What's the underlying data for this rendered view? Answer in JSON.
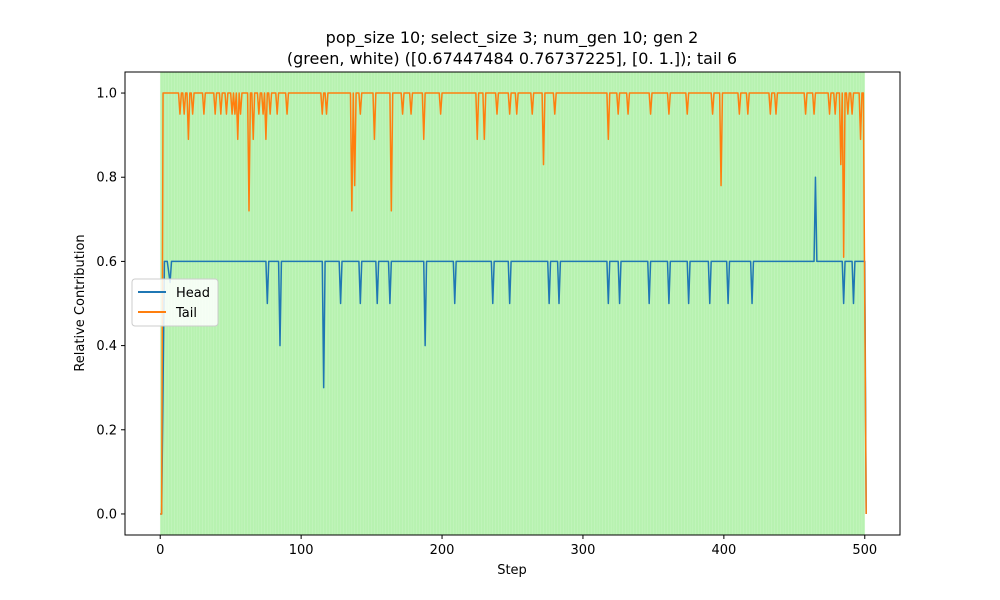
{
  "chart_data": {
    "type": "line",
    "title_line1": "pop_size 10; select_size 3; num_gen 10; gen 2",
    "title_line2": "(green, white) ([0.67447484 0.76737225], [0. 1.]); tail 6",
    "xlabel": "Step",
    "ylabel": "Relative Contribution",
    "xlim": [
      -25,
      525
    ],
    "ylim": [
      -0.05,
      1.05
    ],
    "xticks": [
      0,
      100,
      200,
      300,
      400,
      500
    ],
    "yticks": [
      0.0,
      0.2,
      0.4,
      0.6,
      0.8,
      1.0
    ],
    "xtick_labels": [
      "0",
      "100",
      "200",
      "300",
      "400",
      "500"
    ],
    "ytick_labels": [
      "0.0",
      "0.2",
      "0.4",
      "0.6",
      "0.8",
      "1.0"
    ],
    "background_band": {
      "x_start": 0,
      "x_end": 500,
      "color": "#b7f2b0"
    },
    "legend": {
      "placement": "center-left",
      "entries": [
        "Head",
        "Tail"
      ]
    },
    "grid": false,
    "series": [
      {
        "name": "Head",
        "color": "#1f77b4",
        "baseline": 0.6,
        "start": [
          [
            0,
            0.0
          ],
          [
            1,
            0.0
          ],
          [
            3,
            0.6
          ],
          [
            5,
            0.6
          ],
          [
            7,
            0.55
          ],
          [
            8,
            0.6
          ]
        ],
        "dips": [
          [
            76,
            0.5
          ],
          [
            85,
            0.4
          ],
          [
            116,
            0.3
          ],
          [
            128,
            0.5
          ],
          [
            142,
            0.5
          ],
          [
            154,
            0.5
          ],
          [
            163,
            0.5
          ],
          [
            188,
            0.4
          ],
          [
            209,
            0.5
          ],
          [
            236,
            0.5
          ],
          [
            248,
            0.5
          ],
          [
            276,
            0.5
          ],
          [
            283,
            0.5
          ],
          [
            318,
            0.5
          ],
          [
            326,
            0.5
          ],
          [
            347,
            0.5
          ],
          [
            361,
            0.5
          ],
          [
            375,
            0.5
          ],
          [
            390,
            0.5
          ],
          [
            403,
            0.5
          ],
          [
            420,
            0.5
          ],
          [
            465,
            0.8
          ],
          [
            485,
            0.5
          ],
          [
            492,
            0.5
          ]
        ],
        "end": [
          [
            496,
            0.6
          ],
          [
            500,
            0.6
          ],
          [
            501,
            0.0
          ]
        ]
      },
      {
        "name": "Tail",
        "color": "#ff7f0e",
        "baseline": 1.0,
        "start": [
          [
            0,
            0.0
          ],
          [
            1,
            0.0
          ],
          [
            2,
            1.0
          ]
        ],
        "dips": [
          [
            14,
            0.95
          ],
          [
            17,
            0.95
          ],
          [
            20,
            0.89
          ],
          [
            23,
            0.95
          ],
          [
            31,
            0.95
          ],
          [
            39,
            0.95
          ],
          [
            43,
            0.95
          ],
          [
            47,
            0.95
          ],
          [
            51,
            0.95
          ],
          [
            53,
            0.95
          ],
          [
            55,
            0.89
          ],
          [
            57,
            0.95
          ],
          [
            63,
            0.72
          ],
          [
            66,
            0.89
          ],
          [
            70,
            0.95
          ],
          [
            73,
            0.95
          ],
          [
            75,
            0.89
          ],
          [
            78,
            0.95
          ],
          [
            83,
            0.95
          ],
          [
            90,
            0.95
          ],
          [
            115,
            0.95
          ],
          [
            118,
            0.95
          ],
          [
            136,
            0.72
          ],
          [
            138,
            0.78
          ],
          [
            142,
            0.95
          ],
          [
            152,
            0.89
          ],
          [
            164,
            0.72
          ],
          [
            172,
            0.95
          ],
          [
            178,
            0.95
          ],
          [
            187,
            0.89
          ],
          [
            199,
            0.95
          ],
          [
            225,
            0.89
          ],
          [
            230,
            0.89
          ],
          [
            239,
            0.95
          ],
          [
            248,
            0.95
          ],
          [
            253,
            0.95
          ],
          [
            264,
            0.95
          ],
          [
            272,
            0.83
          ],
          [
            280,
            0.95
          ],
          [
            318,
            0.89
          ],
          [
            325,
            0.95
          ],
          [
            332,
            0.95
          ],
          [
            348,
            0.95
          ],
          [
            361,
            0.95
          ],
          [
            374,
            0.95
          ],
          [
            392,
            0.95
          ],
          [
            398,
            0.78
          ],
          [
            411,
            0.95
          ],
          [
            417,
            0.95
          ],
          [
            433,
            0.95
          ],
          [
            437,
            0.95
          ],
          [
            458,
            0.95
          ],
          [
            464,
            0.95
          ],
          [
            475,
            0.95
          ],
          [
            479,
            0.95
          ],
          [
            483,
            0.83
          ],
          [
            485,
            0.61
          ],
          [
            488,
            0.95
          ],
          [
            491,
            0.95
          ],
          [
            497,
            0.89
          ]
        ],
        "end": [
          [
            499,
            1.0
          ],
          [
            501,
            0.0
          ]
        ]
      }
    ]
  }
}
